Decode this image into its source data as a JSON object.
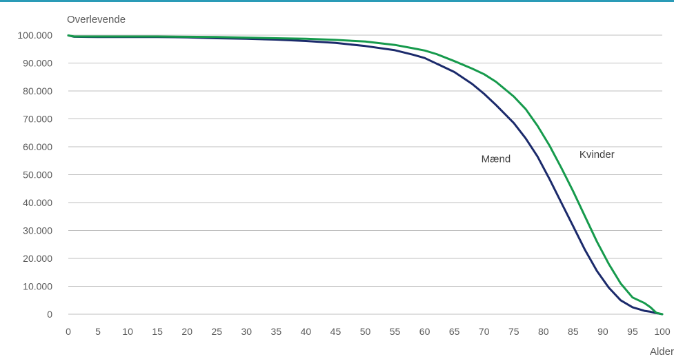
{
  "colors": {
    "top_rule": "#2a9bb7",
    "grid": "#bfbfbf",
    "axis_text": "#595959",
    "maend": "#1b2a6b",
    "kvinder": "#169a4c"
  },
  "chart_data": {
    "type": "line",
    "title": "",
    "ylabel": "Overlevende",
    "xlabel": "Alder",
    "xlim": [
      0,
      100
    ],
    "ylim": [
      0,
      100000
    ],
    "xticks": [
      0,
      5,
      10,
      15,
      20,
      25,
      30,
      35,
      40,
      45,
      50,
      55,
      60,
      65,
      70,
      75,
      80,
      85,
      90,
      95,
      100
    ],
    "yticks": [
      0,
      10000,
      20000,
      30000,
      40000,
      50000,
      60000,
      70000,
      80000,
      90000,
      100000
    ],
    "ytick_labels": [
      "0",
      "10.000",
      "20.000",
      "30.000",
      "40.000",
      "50.000",
      "60.000",
      "70.000",
      "80.000",
      "90.000",
      "100.000"
    ],
    "grid": "horizontal",
    "legend": "none",
    "series": [
      {
        "name": "Mænd",
        "color_key": "maend",
        "x": [
          0,
          1,
          5,
          10,
          15,
          20,
          25,
          30,
          35,
          40,
          45,
          50,
          55,
          58,
          60,
          62,
          65,
          68,
          70,
          72,
          75,
          77,
          79,
          81,
          83,
          85,
          87,
          89,
          91,
          93,
          95,
          97,
          98,
          99,
          100
        ],
        "y": [
          99900,
          99400,
          99300,
          99300,
          99300,
          99200,
          98900,
          98700,
          98400,
          97900,
          97200,
          96100,
          94600,
          93000,
          91800,
          89800,
          86800,
          82500,
          79000,
          75000,
          68500,
          63000,
          56500,
          48500,
          40000,
          31500,
          23000,
          15500,
          9500,
          5000,
          2500,
          1200,
          900,
          400,
          0
        ]
      },
      {
        "name": "Kvinder",
        "color_key": "kvinder",
        "x": [
          0,
          1,
          5,
          10,
          15,
          20,
          25,
          30,
          35,
          40,
          45,
          50,
          55,
          58,
          60,
          62,
          65,
          68,
          70,
          72,
          75,
          77,
          79,
          81,
          83,
          85,
          87,
          89,
          91,
          93,
          95,
          97,
          98,
          99,
          100
        ],
        "y": [
          99900,
          99500,
          99500,
          99500,
          99500,
          99400,
          99300,
          99100,
          98900,
          98700,
          98300,
          97700,
          96500,
          95300,
          94500,
          93200,
          90700,
          88000,
          86000,
          83300,
          78000,
          73500,
          67500,
          60500,
          52500,
          44000,
          35000,
          26000,
          18000,
          11000,
          6000,
          4000,
          2500,
          500,
          0
        ]
      }
    ],
    "annotations": [
      {
        "text": "Mænd",
        "x": 72,
        "y": 54500
      },
      {
        "text": "Kvinder",
        "x": 89,
        "y": 56000
      }
    ]
  }
}
